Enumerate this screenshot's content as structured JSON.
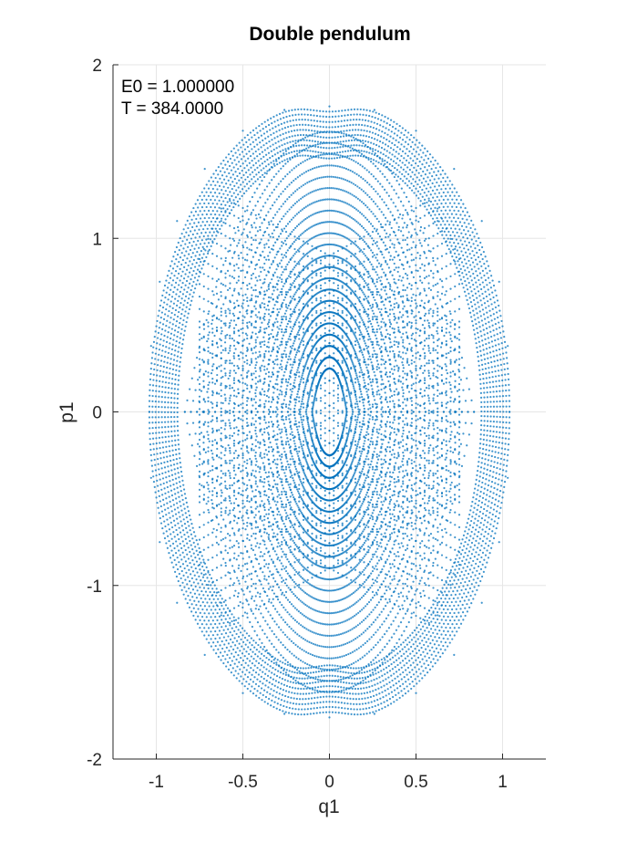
{
  "chart_data": {
    "type": "scatter",
    "title": "Double pendulum",
    "xlabel": "q1",
    "ylabel": "p1",
    "xlim": [
      -1.25,
      1.25
    ],
    "ylim": [
      -2,
      2
    ],
    "xticks": [
      -1,
      -0.5,
      0,
      0.5,
      1
    ],
    "xtick_labels": [
      "-1",
      "-0.5",
      "0",
      "0.5",
      "1"
    ],
    "yticks": [
      -2,
      -1,
      0,
      1,
      2
    ],
    "ytick_labels": [
      "-2",
      "-1",
      "0",
      "1",
      "2"
    ],
    "grid": true,
    "annotations": [
      "E0 = 1.000000",
      "T = 384.0000"
    ],
    "series": [
      {
        "color": "#0072BD",
        "marker": "dot",
        "note": "Poincaré-style trajectory samples of a quasi-periodic orbit; outer envelope approx. ellipse with |q1|<=1.04, |p1|<=1.79",
        "x": [
          0,
          0.26,
          0.5,
          0.72,
          0.88,
          0.98,
          1.03,
          1.04,
          1.03,
          0.98,
          0.88,
          0.72,
          0.5,
          0.26,
          0,
          -0.26,
          -0.5,
          -0.72,
          -0.88,
          -0.98,
          -1.03,
          -1.04,
          -1.03,
          -0.98,
          -0.88,
          -0.72,
          -0.5,
          -0.26,
          0,
          0.3,
          -0.3,
          0.3,
          -0.3,
          0.15,
          -0.15,
          0.15,
          -0.15,
          0.0,
          0.05,
          -0.05
        ],
        "y": [
          1.76,
          1.74,
          1.62,
          1.4,
          1.1,
          0.75,
          0.38,
          0,
          -0.38,
          -0.75,
          -1.1,
          -1.4,
          -1.62,
          -1.74,
          -1.76,
          -1.74,
          -1.62,
          -1.4,
          -1.1,
          -0.75,
          -0.38,
          0,
          0.38,
          0.75,
          1.1,
          1.4,
          1.62,
          1.74,
          0.85,
          0.35,
          0.35,
          -0.35,
          -0.35,
          0.6,
          0.6,
          -0.6,
          -0.6,
          0.0,
          0.1,
          -0.1
        ]
      }
    ]
  }
}
